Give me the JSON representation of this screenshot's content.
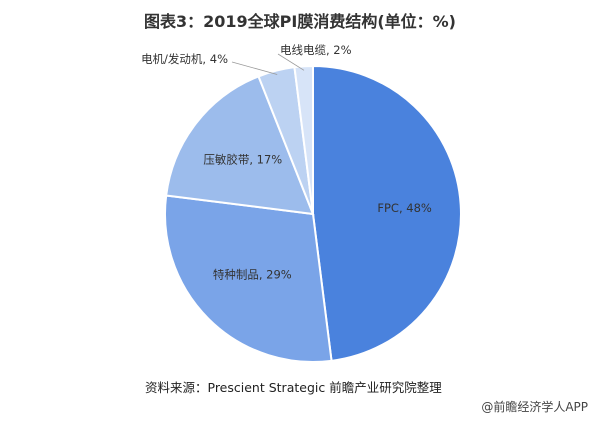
{
  "title": "图表3：2019全球PI膜消费结构(单位：%)",
  "chart_data": {
    "type": "pie",
    "title": "图表3：2019全球PI膜消费结构(单位：%)",
    "slices": [
      {
        "name": "FPC",
        "value": 48,
        "label": "FPC, 48%",
        "color": "#4a82dd"
      },
      {
        "name": "特种制品",
        "value": 29,
        "label": "特种制品, 29%",
        "color": "#7aa4e8"
      },
      {
        "name": "压敏胶带",
        "value": 17,
        "label": "压敏胶带, 17%",
        "color": "#9cbcec"
      },
      {
        "name": "电机/发动机",
        "value": 4,
        "label": "电机/发动机, 4%",
        "color": "#bcd2f2"
      },
      {
        "name": "电线电缆",
        "value": 2,
        "label": "电线电缆, 2%",
        "color": "#d7e4f8"
      }
    ]
  },
  "source": "资料来源：Prescient Strategic 前瞻产业研究院整理",
  "footer": "@前瞻经济学人APP"
}
